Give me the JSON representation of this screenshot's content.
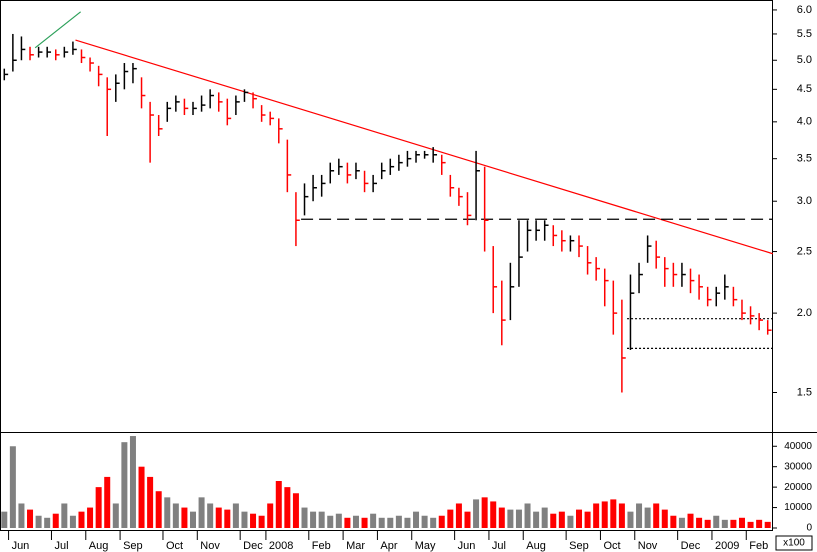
{
  "chart_data": {
    "type": "ohlc",
    "categories": [
      null,
      "Jun",
      null,
      null,
      null,
      null,
      "Jul",
      null,
      null,
      null,
      "Aug",
      null,
      null,
      null,
      "Sep",
      null,
      null,
      null,
      null,
      "Oct",
      null,
      null,
      null,
      "Nov",
      null,
      null,
      null,
      null,
      "Dec",
      null,
      null,
      "2008",
      null,
      null,
      null,
      null,
      "Feb",
      null,
      null,
      null,
      "Mar",
      null,
      null,
      null,
      "Apr",
      null,
      null,
      null,
      "May",
      null,
      null,
      null,
      null,
      "Jun",
      null,
      null,
      null,
      "Jul",
      null,
      null,
      null,
      "Aug",
      null,
      null,
      null,
      null,
      "Sep",
      null,
      null,
      null,
      "Oct",
      null,
      null,
      null,
      "Nov",
      null,
      null,
      null,
      null,
      "Dec",
      null,
      null,
      null,
      "2009",
      null,
      null,
      null,
      "Feb",
      null,
      null
    ],
    "high": [
      4.85,
      5.5,
      5.45,
      5.25,
      5.25,
      5.25,
      5.2,
      5.25,
      5.35,
      5.2,
      5.05,
      4.9,
      4.7,
      4.75,
      4.95,
      4.95,
      4.7,
      4.3,
      4.1,
      4.3,
      4.4,
      4.35,
      4.3,
      4.4,
      4.5,
      4.45,
      4.35,
      4.4,
      4.5,
      4.45,
      4.25,
      4.15,
      4.05,
      3.75,
      3.1,
      3.2,
      3.3,
      3.3,
      3.45,
      3.5,
      3.45,
      3.45,
      3.35,
      3.3,
      3.45,
      3.5,
      3.55,
      3.6,
      3.6,
      3.6,
      3.65,
      3.55,
      3.3,
      3.15,
      3.1,
      3.6,
      3.4,
      2.55,
      2.25,
      2.4,
      2.8,
      2.8,
      2.8,
      2.8,
      2.75,
      2.7,
      2.65,
      2.65,
      2.55,
      2.45,
      2.35,
      2.25,
      2.1,
      2.3,
      2.4,
      2.65,
      2.6,
      2.45,
      2.4,
      2.4,
      2.35,
      2.3,
      2.2,
      2.2,
      2.3,
      2.2,
      2.1,
      2.05,
      2.0,
      1.95
    ],
    "low": [
      4.65,
      4.8,
      5.0,
      5.0,
      5.05,
      5.05,
      5.0,
      5.05,
      5.1,
      4.95,
      4.8,
      4.55,
      3.8,
      4.3,
      4.5,
      4.6,
      4.2,
      3.45,
      3.8,
      4.0,
      4.15,
      4.1,
      4.1,
      4.15,
      4.2,
      4.15,
      3.95,
      4.1,
      4.3,
      4.2,
      4.0,
      3.95,
      3.7,
      3.1,
      2.55,
      2.85,
      3.0,
      3.05,
      3.2,
      3.3,
      3.2,
      3.25,
      3.1,
      3.1,
      3.25,
      3.3,
      3.35,
      3.4,
      3.45,
      3.5,
      3.45,
      3.3,
      3.05,
      2.95,
      2.75,
      2.8,
      2.5,
      2.0,
      1.78,
      1.95,
      2.2,
      2.5,
      2.6,
      2.6,
      2.55,
      2.5,
      2.5,
      2.45,
      2.3,
      2.25,
      2.05,
      1.85,
      1.5,
      1.75,
      2.15,
      2.4,
      2.35,
      2.2,
      2.2,
      2.2,
      2.15,
      2.1,
      2.05,
      2.05,
      2.1,
      2.05,
      1.95,
      1.92,
      1.88,
      1.85
    ],
    "close": [
      4.75,
      5.0,
      5.2,
      5.1,
      5.15,
      5.15,
      5.1,
      5.15,
      5.2,
      5.05,
      4.95,
      4.75,
      4.5,
      4.6,
      4.8,
      4.85,
      4.4,
      4.1,
      3.9,
      4.2,
      4.3,
      4.2,
      4.2,
      4.25,
      4.4,
      4.3,
      4.05,
      4.3,
      4.45,
      4.35,
      4.1,
      4.05,
      3.9,
      3.3,
      2.8,
      3.05,
      3.15,
      3.2,
      3.35,
      3.4,
      3.3,
      3.35,
      3.2,
      3.2,
      3.35,
      3.4,
      3.45,
      3.5,
      3.55,
      3.55,
      3.55,
      3.45,
      3.15,
      3.05,
      2.85,
      3.35,
      2.8,
      2.2,
      1.95,
      2.2,
      2.45,
      2.7,
      2.7,
      2.75,
      2.65,
      2.6,
      2.6,
      2.55,
      2.4,
      2.35,
      2.25,
      2.0,
      1.7,
      2.15,
      2.3,
      2.55,
      2.45,
      2.35,
      2.3,
      2.3,
      2.25,
      2.2,
      2.1,
      2.15,
      2.2,
      2.1,
      2.0,
      1.98,
      1.95,
      1.88
    ],
    "volume": [
      8000,
      40000,
      12000,
      9000,
      6000,
      5000,
      7000,
      12000,
      6000,
      8000,
      10000,
      20000,
      25000,
      12000,
      42000,
      45000,
      30000,
      25000,
      18000,
      15000,
      12000,
      10000,
      8000,
      15000,
      12000,
      10000,
      9000,
      12000,
      8000,
      7000,
      6000,
      12000,
      23000,
      20000,
      17000,
      10000,
      8000,
      8000,
      6000,
      7000,
      5000,
      6000,
      5000,
      7000,
      5000,
      5000,
      6000,
      5000,
      8000,
      6000,
      5000,
      6000,
      9000,
      12000,
      8000,
      14000,
      15000,
      13000,
      10000,
      9000,
      9000,
      12000,
      8000,
      10000,
      7000,
      8000,
      6000,
      9000,
      8000,
      12000,
      13000,
      14000,
      12000,
      8000,
      12000,
      10000,
      12000,
      9000,
      6000,
      5000,
      7000,
      5000,
      4000,
      6000,
      4000,
      4000,
      5000,
      3000,
      4000,
      3000
    ],
    "up_color": "#000000",
    "down_color": "#ff0000",
    "volume_up_color": "#808080",
    "volume_down_color": "#ff0000",
    "log_scale": true,
    "ylim": [
      1.3,
      6.22
    ],
    "yticks": [
      1.5,
      {
        "value": 2,
        "label": "2.0"
      },
      2.5,
      {
        "value": 3,
        "label": "3.0"
      },
      3.5,
      {
        "value": 4,
        "label": "4.0"
      },
      4.5,
      {
        "value": 5,
        "label": "5.0"
      },
      5.5,
      {
        "value": 6,
        "label": "6.0"
      }
    ],
    "volume_ylim": [
      0,
      46000
    ],
    "volume_yticks": [
      0,
      10000,
      20000,
      30000,
      40000
    ],
    "volume_unit_label": "x100",
    "lines": [
      {
        "x": [
          3.6,
          8.9
        ],
        "y": [
          5.23,
          5.96
        ],
        "color": "#2ca05a",
        "style": "solid"
      },
      {
        "x": [
          8.3,
          89.6
        ],
        "y": [
          5.38,
          2.48
        ],
        "color": "#ff0000",
        "style": "solid"
      },
      {
        "x": [
          34.6,
          89.6
        ],
        "y": [
          2.81,
          2.81
        ],
        "color": "#000000",
        "style": "dashed"
      },
      {
        "x": [
          72.6,
          89.6
        ],
        "y": [
          1.96,
          1.96
        ],
        "color": "#000000",
        "style": "dotted"
      },
      {
        "x": [
          72.6,
          89.6
        ],
        "y": [
          1.76,
          1.76
        ],
        "color": "#000000",
        "style": "dotted"
      }
    ]
  }
}
